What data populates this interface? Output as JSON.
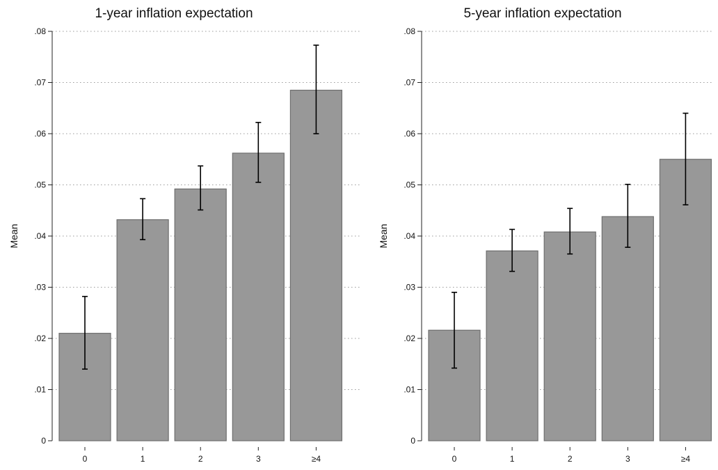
{
  "chart_data": [
    {
      "type": "bar",
      "title": "1-year inflation expectation",
      "ylabel": "Mean",
      "xlabel": "",
      "categories": [
        "0",
        "1",
        "2",
        "3",
        "≥4"
      ],
      "values": [
        0.021,
        0.0432,
        0.0492,
        0.0562,
        0.0685
      ],
      "ci_low": [
        0.014,
        0.0393,
        0.0451,
        0.0505,
        0.06
      ],
      "ci_high": [
        0.0282,
        0.0473,
        0.0537,
        0.0622,
        0.0773
      ],
      "ylim": [
        0,
        0.08
      ],
      "yticks": [
        0,
        0.01,
        0.02,
        0.03,
        0.04,
        0.05,
        0.06,
        0.07,
        0.08
      ],
      "ytick_labels": [
        "0",
        ".01",
        ".02",
        ".03",
        ".04",
        ".05",
        ".06",
        ".07",
        ".08"
      ],
      "grid": true,
      "bar_color": "#989898"
    },
    {
      "type": "bar",
      "title": "5-year inflation expectation",
      "ylabel": "Mean",
      "xlabel": "",
      "categories": [
        "0",
        "1",
        "2",
        "3",
        "≥4"
      ],
      "values": [
        0.0216,
        0.0371,
        0.0408,
        0.0438,
        0.055
      ],
      "ci_low": [
        0.0142,
        0.0331,
        0.0365,
        0.0378,
        0.0461
      ],
      "ci_high": [
        0.029,
        0.0413,
        0.0454,
        0.0501,
        0.064
      ],
      "ylim": [
        0,
        0.08
      ],
      "yticks": [
        0,
        0.01,
        0.02,
        0.03,
        0.04,
        0.05,
        0.06,
        0.07,
        0.08
      ],
      "ytick_labels": [
        "0",
        ".01",
        ".02",
        ".03",
        ".04",
        ".05",
        ".06",
        ".07",
        ".08"
      ],
      "grid": true,
      "bar_color": "#989898"
    }
  ]
}
